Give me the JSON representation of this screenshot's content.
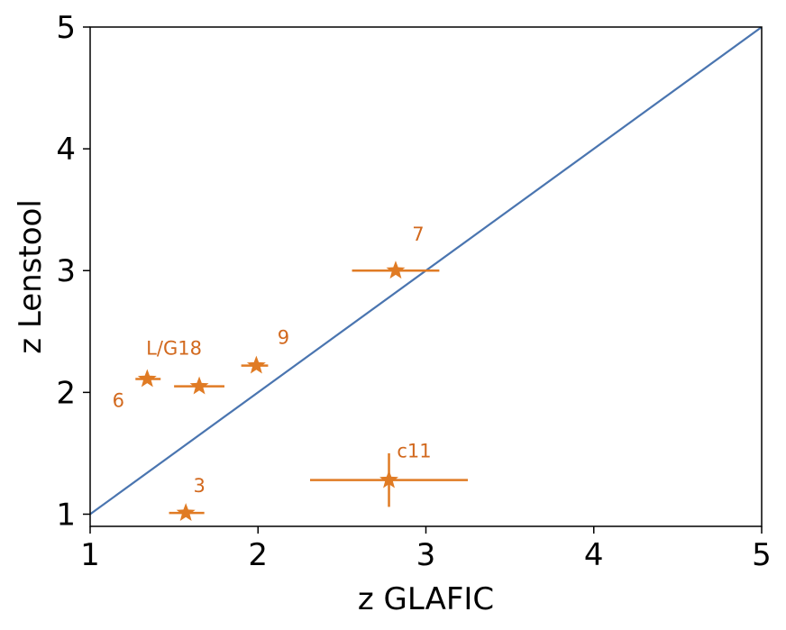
{
  "chart_data": {
    "type": "scatter",
    "xlabel": "z GLAFIC",
    "ylabel": "z Lenstool",
    "xlim": [
      1,
      5
    ],
    "ylim": [
      0.9,
      5
    ],
    "xticks": [
      "1",
      "2",
      "3",
      "4",
      "5"
    ],
    "yticks": [
      "1",
      "2",
      "3",
      "4",
      "5"
    ],
    "grid": false,
    "colors": {
      "points": "#e07b24",
      "labels": "#d2691e",
      "line": "#4a75b0",
      "axes": "#000000"
    },
    "reference_line": {
      "from": [
        1,
        1
      ],
      "to": [
        5,
        5
      ]
    },
    "points": [
      {
        "label": "7",
        "x": 2.82,
        "y": 3.0,
        "xerr_low": 0.26,
        "xerr_high": 0.26,
        "yerr_low": 0.02,
        "yerr_high": 0.02
      },
      {
        "label": "9",
        "x": 1.99,
        "y": 2.22,
        "xerr_low": 0.09,
        "xerr_high": 0.07,
        "yerr_low": 0.02,
        "yerr_high": 0.02
      },
      {
        "label": "L/G18",
        "x": 1.65,
        "y": 2.05,
        "xerr_low": 0.15,
        "xerr_high": 0.15,
        "yerr_low": 0.02,
        "yerr_high": 0.02
      },
      {
        "label": "6",
        "x": 1.34,
        "y": 2.11,
        "xerr_low": 0.07,
        "xerr_high": 0.08,
        "yerr_low": 0.02,
        "yerr_high": 0.02
      },
      {
        "label": "c11",
        "x": 2.78,
        "y": 1.28,
        "xerr_low": 0.47,
        "xerr_high": 0.47,
        "yerr_low": 0.22,
        "yerr_high": 0.22
      },
      {
        "label": "3",
        "x": 1.57,
        "y": 1.01,
        "xerr_low": 0.1,
        "xerr_high": 0.11,
        "yerr_low": 0.02,
        "yerr_high": 0.02
      }
    ]
  }
}
